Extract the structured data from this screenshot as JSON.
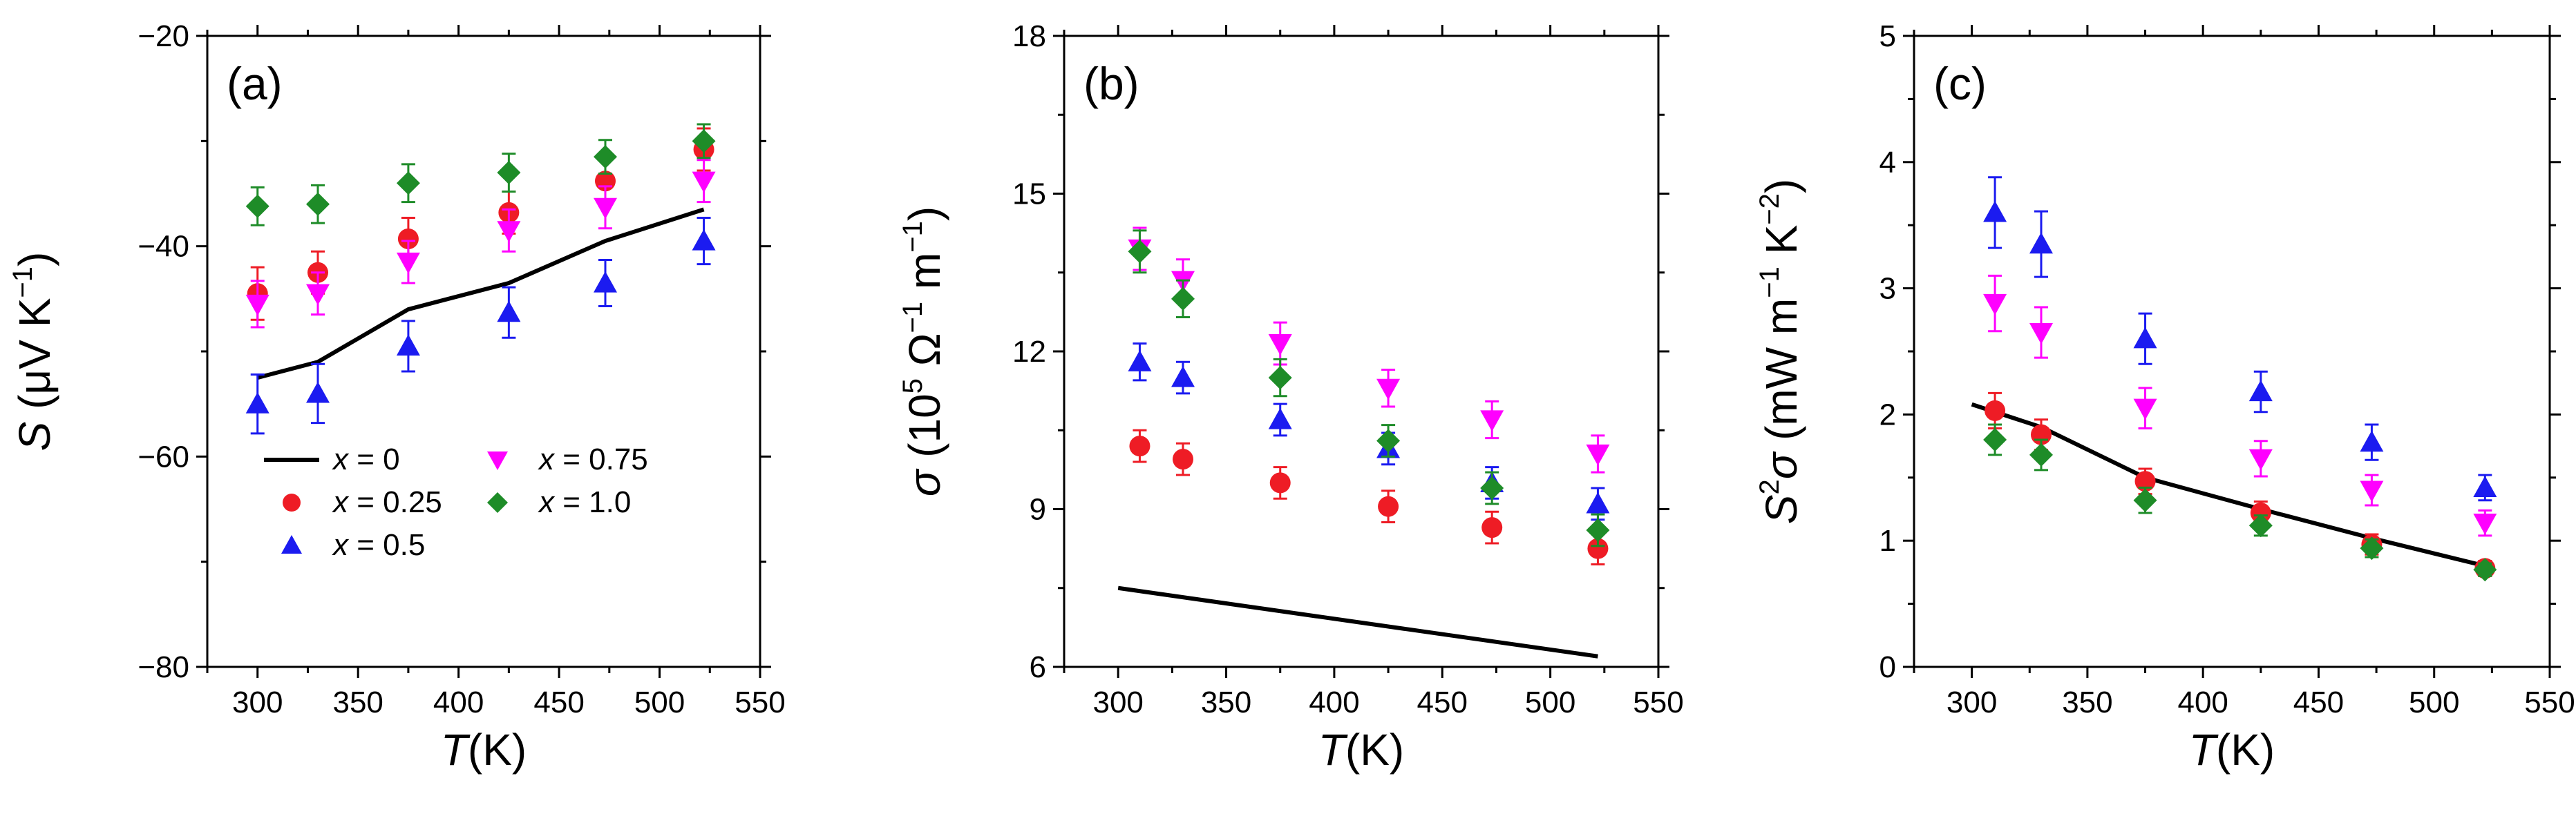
{
  "chart_data": [
    {
      "type": "scatter",
      "panel_label": "(a)",
      "title": "",
      "xlabel": {
        "symbol": "T",
        "rest": "(K)"
      },
      "ylabel": {
        "symbol": "S",
        "pre": "(μV K",
        "sup": "−1",
        "post": ")"
      },
      "xlim": [
        275,
        550
      ],
      "ylim": [
        -80,
        -20
      ],
      "xticks": [
        300,
        350,
        400,
        450,
        500,
        550
      ],
      "xtick_labels": [
        "300",
        "350",
        "400",
        "450",
        "500",
        "550"
      ],
      "yticks": [
        -80,
        -60,
        -40,
        -20
      ],
      "ytick_labels": [
        "−80",
        "−60",
        "−40",
        "−20"
      ],
      "legend": "lower-left",
      "line_series": {
        "name": "x = 0",
        "x": [
          300,
          330,
          375,
          425,
          473,
          522
        ],
        "y": [
          -52.5,
          -51,
          -46,
          -43.5,
          -39.5,
          -36.5
        ]
      },
      "series": [
        {
          "name": "x = 0.25",
          "marker": "circle",
          "color": "#ee1c25",
          "x": [
            300,
            330,
            375,
            425,
            473,
            522
          ],
          "y": [
            -44.5,
            -42.5,
            -39.3,
            -36.8,
            -33.8,
            -30.8
          ],
          "err": [
            2.5,
            2,
            2,
            2,
            2,
            2
          ]
        },
        {
          "name": "x = 0.5",
          "marker": "triangle-up",
          "color": "#1b1bf0",
          "x": [
            300,
            330,
            375,
            425,
            473,
            522
          ],
          "y": [
            -55,
            -54,
            -49.5,
            -46.3,
            -43.5,
            -39.5
          ],
          "err": [
            2.8,
            2.8,
            2.4,
            2.4,
            2.2,
            2.2
          ]
        },
        {
          "name": "x = 0.75",
          "marker": "triangle-down",
          "color": "#ff00ff",
          "x": [
            300,
            330,
            375,
            425,
            473,
            522
          ],
          "y": [
            -45.5,
            -44.5,
            -41.5,
            -38.5,
            -36.3,
            -33.8
          ],
          "err": [
            2.2,
            2,
            2,
            2,
            2,
            2
          ]
        },
        {
          "name": "x = 1.0",
          "marker": "diamond",
          "color": "#1e8c28",
          "x": [
            300,
            330,
            375,
            425,
            473,
            522
          ],
          "y": [
            -36.2,
            -36,
            -34,
            -33,
            -31.5,
            -30
          ],
          "err": [
            1.8,
            1.8,
            1.8,
            1.8,
            1.6,
            1.6
          ]
        }
      ],
      "legend_entries": [
        {
          "label": "x = 0",
          "var": "x",
          "val": "= 0",
          "type": "line"
        },
        {
          "label": "x = 0.75",
          "var": "x",
          "val": "= 0.75",
          "type": "triangle-down",
          "color": "#ff00ff"
        },
        {
          "label": "x = 0.25",
          "var": "x",
          "val": "= 0.25",
          "type": "circle",
          "color": "#ee1c25"
        },
        {
          "label": "x = 1.0",
          "var": "x",
          "val": "= 1.0",
          "type": "diamond",
          "color": "#1e8c28"
        },
        {
          "label": "x = 0.5",
          "var": "x",
          "val": "= 0.5",
          "type": "triangle-up",
          "color": "#1b1bf0"
        }
      ]
    },
    {
      "type": "scatter",
      "panel_label": "(b)",
      "title": "",
      "xlabel": {
        "symbol": "T",
        "rest": "(K)"
      },
      "ylabel": {
        "symbol": "σ",
        "pre": "(10",
        "sup1": "5",
        "mid": " Ω",
        "sup": "−1",
        "post": " m",
        "sup2": "−1",
        "end": ")"
      },
      "xlim": [
        275,
        550
      ],
      "ylim": [
        6,
        18
      ],
      "xticks": [
        300,
        350,
        400,
        450,
        500,
        550
      ],
      "xtick_labels": [
        "300",
        "350",
        "400",
        "450",
        "500",
        "550"
      ],
      "yticks": [
        6,
        9,
        12,
        15,
        18
      ],
      "ytick_labels": [
        "6",
        "9",
        "12",
        "15",
        "18"
      ],
      "line_series": {
        "name": "x = 0",
        "x": [
          300,
          522
        ],
        "y": [
          7.5,
          6.2
        ]
      },
      "series": [
        {
          "name": "x = 0.25",
          "marker": "circle",
          "color": "#ee1c25",
          "x": [
            310,
            330,
            375,
            425,
            473,
            522
          ],
          "y": [
            10.2,
            9.95,
            9.5,
            9.05,
            8.65,
            8.25
          ],
          "err": [
            0.3,
            0.3,
            0.3,
            0.3,
            0.3,
            0.3
          ]
        },
        {
          "name": "x = 0.5",
          "marker": "triangle-up",
          "color": "#1b1bf0",
          "x": [
            310,
            330,
            375,
            425,
            473,
            522
          ],
          "y": [
            11.8,
            11.5,
            10.7,
            10.15,
            9.5,
            9.1
          ],
          "err": [
            0.35,
            0.3,
            0.3,
            0.3,
            0.3,
            0.3
          ]
        },
        {
          "name": "x = 0.75",
          "marker": "triangle-down",
          "color": "#ff00ff",
          "x": [
            310,
            330,
            375,
            425,
            473,
            522
          ],
          "y": [
            13.95,
            13.35,
            12.15,
            11.3,
            10.7,
            10.05
          ],
          "err": [
            0.4,
            0.4,
            0.4,
            0.35,
            0.35,
            0.35
          ]
        },
        {
          "name": "x = 1.0",
          "marker": "diamond",
          "color": "#1e8c28",
          "x": [
            310,
            330,
            375,
            425,
            473,
            522
          ],
          "y": [
            13.9,
            13,
            11.5,
            10.3,
            9.4,
            8.6
          ],
          "err": [
            0.4,
            0.35,
            0.35,
            0.3,
            0.3,
            0.3
          ]
        }
      ]
    },
    {
      "type": "scatter",
      "panel_label": "(c)",
      "title": "",
      "xlabel": {
        "symbol": "T",
        "rest": "(K)"
      },
      "ylabel": {
        "symbol": "S",
        "sup0": "2",
        "symbol2": "σ",
        "pre": "(mW m",
        "sup": "−1",
        "post": " K",
        "sup2": "−2",
        "end": ")"
      },
      "xlim": [
        275,
        550
      ],
      "ylim": [
        0,
        5
      ],
      "xticks": [
        300,
        350,
        400,
        450,
        500,
        550
      ],
      "xtick_labels": [
        "300",
        "350",
        "400",
        "450",
        "500",
        "550"
      ],
      "yticks": [
        0,
        1,
        2,
        3,
        4,
        5
      ],
      "ytick_labels": [
        "0",
        "1",
        "2",
        "3",
        "4",
        "5"
      ],
      "line_series": {
        "name": "x = 0",
        "x": [
          300,
          330,
          375,
          425,
          473,
          522
        ],
        "y": [
          2.08,
          1.9,
          1.5,
          1.25,
          1.02,
          0.8
        ]
      },
      "series": [
        {
          "name": "x = 0.25",
          "marker": "circle",
          "color": "#ee1c25",
          "x": [
            310,
            330,
            375,
            425,
            473,
            522
          ],
          "y": [
            2.03,
            1.84,
            1.47,
            1.22,
            0.97,
            0.78
          ],
          "err": [
            0.14,
            0.12,
            0.1,
            0.09,
            0.08,
            0.06
          ]
        },
        {
          "name": "x = 0.5",
          "marker": "triangle-up",
          "color": "#1b1bf0",
          "x": [
            310,
            330,
            375,
            425,
            473,
            522
          ],
          "y": [
            3.6,
            3.35,
            2.6,
            2.18,
            1.78,
            1.42
          ],
          "err": [
            0.28,
            0.26,
            0.2,
            0.16,
            0.14,
            0.1
          ]
        },
        {
          "name": "x = 0.75",
          "marker": "triangle-down",
          "color": "#ff00ff",
          "x": [
            310,
            330,
            375,
            425,
            473,
            522
          ],
          "y": [
            2.88,
            2.65,
            2.05,
            1.65,
            1.4,
            1.14
          ],
          "err": [
            0.22,
            0.2,
            0.16,
            0.14,
            0.12,
            0.1
          ]
        },
        {
          "name": "x = 1.0",
          "marker": "diamond",
          "color": "#1e8c28",
          "x": [
            310,
            330,
            375,
            425,
            473,
            522
          ],
          "y": [
            1.8,
            1.68,
            1.32,
            1.12,
            0.94,
            0.77
          ],
          "err": [
            0.12,
            0.12,
            0.1,
            0.08,
            0.07,
            0.05
          ]
        }
      ]
    }
  ]
}
